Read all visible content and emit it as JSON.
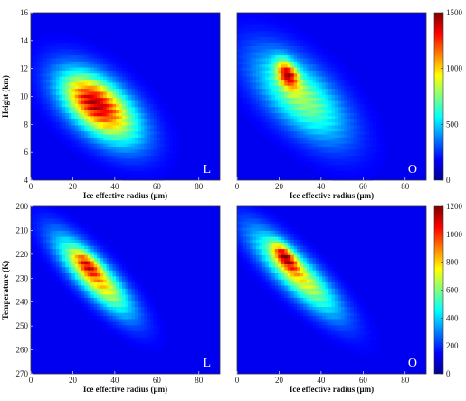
{
  "chart_data": [
    {
      "type": "heatmap",
      "panel_label": "L",
      "xlabel": "Ice effective radius (μm)",
      "ylabel": "Height (km)",
      "xlim": [
        0,
        90
      ],
      "ylim": [
        4,
        16
      ],
      "x_ticks": [
        "0",
        "20",
        "40",
        "60",
        "80"
      ],
      "y_ticks": [
        "4",
        "6",
        "8",
        "10",
        "12",
        "14",
        "16"
      ],
      "colorbar": null,
      "blobs": [
        {
          "x": 33,
          "y": 9.2,
          "sx": 13,
          "sy": 1.8,
          "rho": -0.55,
          "peak": 820
        },
        {
          "x": 28,
          "y": 9.8,
          "sx": 8,
          "sy": 1.1,
          "rho": -0.45,
          "peak": 220
        }
      ]
    },
    {
      "type": "heatmap",
      "panel_label": "O",
      "xlabel": "Ice effective radius (μm)",
      "ylabel": "",
      "xlim": [
        0,
        90
      ],
      "ylim": [
        4,
        16
      ],
      "x_ticks": [
        "0",
        "20",
        "40",
        "60",
        "80"
      ],
      "y_ticks": [],
      "colorbar": {
        "min": 0,
        "max": 1500,
        "ticks": [
          "0",
          "500",
          "1000",
          "1500"
        ]
      },
      "blobs": [
        {
          "x": 30,
          "y": 10.0,
          "sx": 15,
          "sy": 2.2,
          "rho": -0.62,
          "peak": 700
        },
        {
          "x": 24,
          "y": 11.6,
          "sx": 3.5,
          "sy": 0.7,
          "rho": -0.4,
          "peak": 900
        }
      ]
    },
    {
      "type": "heatmap",
      "panel_label": "L",
      "xlabel": "Ice effective radius (μm)",
      "ylabel": "Temperature (K)",
      "xlim": [
        0,
        90
      ],
      "ylim": [
        200,
        270
      ],
      "y_inverted": true,
      "x_ticks": [
        "0",
        "20",
        "40",
        "60",
        "80"
      ],
      "y_ticks": [
        "200",
        "210",
        "220",
        "230",
        "240",
        "250",
        "260",
        "270"
      ],
      "colorbar": null,
      "blobs": [
        {
          "x": 30,
          "y": 229,
          "sx": 12,
          "sy": 11,
          "rho": 0.82,
          "peak": 560
        },
        {
          "x": 27,
          "y": 224,
          "sx": 4,
          "sy": 3.5,
          "rho": 0.6,
          "peak": 240
        }
      ]
    },
    {
      "type": "heatmap",
      "panel_label": "O",
      "xlabel": "Ice effective radius (μm)",
      "ylabel": "",
      "xlim": [
        0,
        90
      ],
      "ylim": [
        200,
        270
      ],
      "y_inverted": true,
      "x_ticks": [
        "0",
        "20",
        "40",
        "60",
        "80"
      ],
      "y_ticks": [],
      "colorbar": {
        "min": 0,
        "max": 1200,
        "ticks": [
          "0",
          "200",
          "400",
          "600",
          "800",
          "1000",
          "1200"
        ]
      },
      "blobs": [
        {
          "x": 28,
          "y": 228,
          "sx": 14,
          "sy": 12,
          "rho": 0.84,
          "peak": 700
        },
        {
          "x": 23,
          "y": 221,
          "sx": 4,
          "sy": 4,
          "rho": 0.65,
          "peak": 600
        }
      ]
    }
  ]
}
